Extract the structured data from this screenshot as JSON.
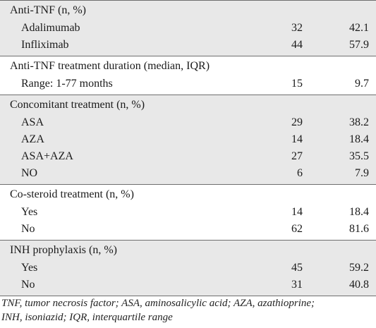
{
  "sections": [
    {
      "title": "Anti-TNF (n, %)",
      "shaded": true,
      "rows": [
        {
          "label": "Adalimumab",
          "n": "32",
          "pct": "42.1"
        },
        {
          "label": "Infliximab",
          "n": "44",
          "pct": "57.9"
        }
      ]
    },
    {
      "title": "Anti-TNF treatment duration (median, IQR)",
      "shaded": false,
      "rows": [
        {
          "label": "Range: 1-77 months",
          "n": "15",
          "pct": "9.7"
        }
      ]
    },
    {
      "title": "Concomitant treatment (n, %)",
      "shaded": true,
      "rows": [
        {
          "label": "ASA",
          "n": "29",
          "pct": "38.2"
        },
        {
          "label": "AZA",
          "n": "14",
          "pct": "18.4"
        },
        {
          "label": "ASA+AZA",
          "n": "27",
          "pct": "35.5"
        },
        {
          "label": "NO",
          "n": "6",
          "pct": "7.9"
        }
      ]
    },
    {
      "title": "Co-steroid treatment (n, %)",
      "shaded": false,
      "rows": [
        {
          "label": "Yes",
          "n": "14",
          "pct": "18.4"
        },
        {
          "label": "No",
          "n": "62",
          "pct": "81.6"
        }
      ]
    },
    {
      "title": "INH prophylaxis (n, %)",
      "shaded": true,
      "rows": [
        {
          "label": "Yes",
          "n": "45",
          "pct": "59.2"
        },
        {
          "label": "No",
          "n": "31",
          "pct": "40.8"
        }
      ]
    }
  ],
  "footnote": {
    "line1": "TNF, tumor necrosis factor; ASA, aminosalicylic acid; AZA, azathioprine;",
    "line2": "INH, isoniazid; IQR, interquartile range"
  }
}
